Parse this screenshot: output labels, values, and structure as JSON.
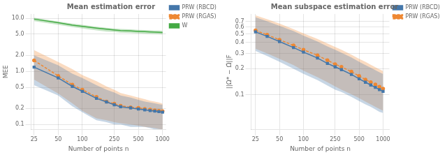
{
  "chart_data": [
    {
      "type": "line",
      "title": "Mean estimation error",
      "xlabel": "Number of points n",
      "ylabel": "MEE",
      "log": true,
      "grid": true,
      "legend": "upper right",
      "x": [
        25,
        50,
        75,
        100,
        150,
        200,
        250,
        300,
        400,
        500,
        600,
        700,
        800,
        900,
        1000
      ],
      "series": [
        {
          "name": "PRW (RBCD)",
          "color": "#4477aa",
          "marker": "square",
          "line_style": "solid",
          "values": [
            1.2,
            0.75,
            0.52,
            0.42,
            0.31,
            0.265,
            0.235,
            0.215,
            0.205,
            0.195,
            0.188,
            0.182,
            0.178,
            0.174,
            0.17
          ],
          "low": [
            0.55,
            0.35,
            0.22,
            0.17,
            0.12,
            0.11,
            0.1,
            0.1,
            0.09,
            0.09,
            0.09,
            0.085,
            0.08,
            0.08,
            0.08
          ],
          "high": [
            2.0,
            1.3,
            0.9,
            0.75,
            0.55,
            0.45,
            0.4,
            0.35,
            0.32,
            0.29,
            0.27,
            0.26,
            0.25,
            0.24,
            0.235
          ]
        },
        {
          "name": "PRW (RGAS)",
          "color": "#ee8833",
          "marker": "circle",
          "line_style": "dashed",
          "values": [
            1.6,
            0.82,
            0.56,
            0.45,
            0.33,
            0.27,
            0.245,
            0.225,
            0.21,
            0.205,
            0.196,
            0.19,
            0.185,
            0.18,
            0.178
          ],
          "low": [
            0.7,
            0.38,
            0.25,
            0.18,
            0.13,
            0.12,
            0.11,
            0.105,
            0.1,
            0.095,
            0.09,
            0.088,
            0.085,
            0.082,
            0.08
          ],
          "high": [
            2.5,
            1.5,
            1.1,
            0.85,
            0.65,
            0.52,
            0.45,
            0.39,
            0.35,
            0.32,
            0.3,
            0.28,
            0.27,
            0.26,
            0.245
          ]
        },
        {
          "name": "W",
          "color": "#44aa44",
          "marker": "none",
          "line_style": "solid",
          "values": [
            9.6,
            8.2,
            7.4,
            7.0,
            6.5,
            6.2,
            6.0,
            5.85,
            5.75,
            5.65,
            5.58,
            5.52,
            5.48,
            5.44,
            5.4
          ],
          "low": [
            8.8,
            7.5,
            6.8,
            6.4,
            5.9,
            5.6,
            5.5,
            5.35,
            5.26,
            5.18,
            5.12,
            5.07,
            5.03,
            4.99,
            4.96
          ],
          "high": [
            10.2,
            8.7,
            7.9,
            7.5,
            6.9,
            6.6,
            6.4,
            6.25,
            6.15,
            6.05,
            5.98,
            5.92,
            5.87,
            5.83,
            5.78
          ]
        }
      ],
      "xlim": [
        23,
        1100
      ],
      "ylim": [
        0.08,
        12
      ],
      "xticks": [
        25,
        50,
        100,
        250,
        500,
        1000
      ],
      "yticks": [
        0.1,
        0.2,
        0.5,
        {
          "value": 1.0,
          "label": "1.0"
        },
        {
          "value": 2.0,
          "label": "2.0"
        },
        {
          "value": 5.0,
          "label": "5.0"
        },
        {
          "value": 10.0,
          "label": "10.0"
        }
      ]
    },
    {
      "type": "line",
      "title": "Mean subspace estimation error",
      "xlabel": "Number of points n",
      "ylabel": "||Ω* − Ω̂||F",
      "log": true,
      "grid": true,
      "legend": "upper right",
      "x": [
        25,
        35,
        50,
        75,
        100,
        150,
        200,
        250,
        300,
        400,
        500,
        600,
        700,
        800,
        900,
        1000
      ],
      "series": [
        {
          "name": "PRW (RBCD)",
          "color": "#4477aa",
          "marker": "square",
          "line_style": "solid",
          "values": [
            0.53,
            0.47,
            0.41,
            0.35,
            0.31,
            0.265,
            0.23,
            0.21,
            0.195,
            0.172,
            0.153,
            0.14,
            0.13,
            0.122,
            0.115,
            0.11
          ],
          "low": [
            0.32,
            0.28,
            0.24,
            0.2,
            0.175,
            0.148,
            0.128,
            0.115,
            0.108,
            0.095,
            0.085,
            0.078,
            0.073,
            0.068,
            0.064,
            0.062
          ],
          "high": [
            0.78,
            0.7,
            0.62,
            0.54,
            0.48,
            0.41,
            0.36,
            0.33,
            0.305,
            0.27,
            0.24,
            0.22,
            0.205,
            0.192,
            0.182,
            0.174
          ]
        },
        {
          "name": "PRW (RGAS)",
          "color": "#ee8833",
          "marker": "circle",
          "line_style": "dashed",
          "values": [
            0.55,
            0.49,
            0.43,
            0.37,
            0.33,
            0.285,
            0.25,
            0.225,
            0.21,
            0.185,
            0.165,
            0.15,
            0.14,
            0.132,
            0.124,
            0.118
          ],
          "low": [
            0.34,
            0.3,
            0.26,
            0.22,
            0.19,
            0.16,
            0.14,
            0.125,
            0.115,
            0.102,
            0.092,
            0.084,
            0.078,
            0.073,
            0.069,
            0.066
          ],
          "high": [
            0.82,
            0.74,
            0.66,
            0.57,
            0.51,
            0.44,
            0.39,
            0.355,
            0.33,
            0.29,
            0.26,
            0.24,
            0.222,
            0.208,
            0.197,
            0.188
          ]
        }
      ],
      "xlim": [
        22,
        1200
      ],
      "ylim": [
        0.04,
        0.85
      ],
      "xticks": [
        25,
        50,
        100,
        250,
        500,
        1000
      ],
      "yticks": [
        0.1,
        0.2,
        0.3,
        0.4,
        0.5,
        0.6,
        0.7
      ]
    }
  ]
}
